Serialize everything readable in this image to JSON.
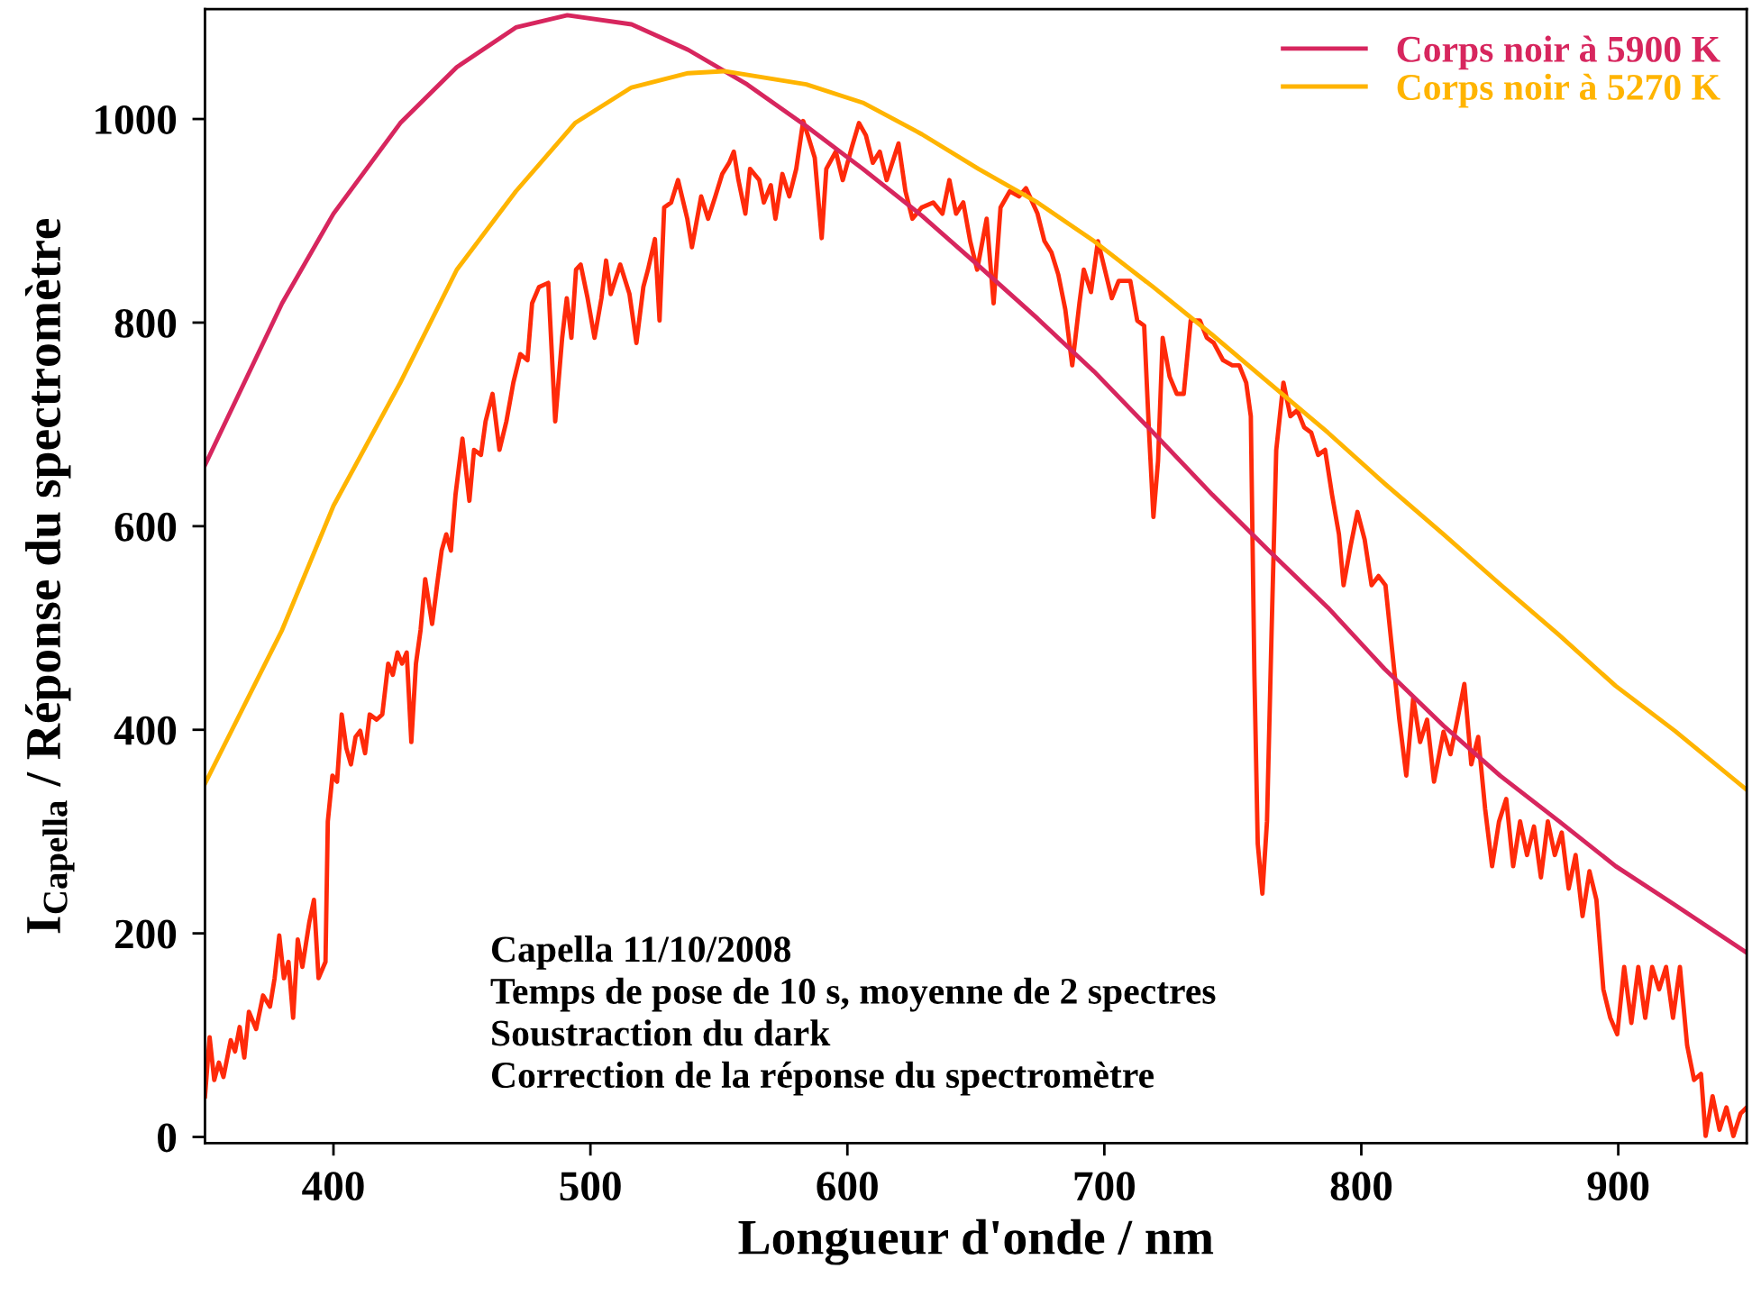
{
  "chart_data": {
    "type": "line",
    "xlabel": "Longueur d'onde / nm",
    "ylabel": "I$_{Capella}$ / Réponse du spectromètre",
    "xlim": [
      350,
      950
    ],
    "xticks": [
      400,
      500,
      600,
      700,
      800,
      900
    ],
    "ylim": [
      -6,
      1108
    ],
    "yticks": [
      0,
      200,
      400,
      600,
      800,
      1000
    ],
    "grid": false,
    "legend": "top right",
    "marker": "none",
    "line_style": "solid",
    "annotations": [
      "Capella 11/10/2008",
      "Temps de pose de 10 s, moyenne de 2 spectres",
      "Soustraction du dark",
      "Correction de la réponse du spectromètre"
    ],
    "series": [
      {
        "color": "#ff2a0a",
        "x": [
          350,
          351.8,
          353.6,
          355.4,
          357.2,
          360,
          361.7,
          363.5,
          365.3,
          367.1,
          369.9,
          372.6,
          375.3,
          377.1,
          378.9,
          380.7,
          382.5,
          384.3,
          386.1,
          387.9,
          390.6,
          392.4,
          394.2,
          396.9,
          397.8,
          399.6,
          401.4,
          403.2,
          405,
          406.8,
          408.6,
          410.4,
          412.3,
          414.1,
          416.8,
          419,
          421.3,
          423.1,
          424.9,
          426.7,
          428.5,
          430.3,
          432.1,
          433.9,
          435.7,
          438.4,
          440.3,
          442.1,
          443.9,
          445.7,
          447.5,
          450.2,
          452.9,
          454.7,
          457.4,
          459.2,
          461.9,
          464.6,
          467.3,
          470,
          472.7,
          475.5,
          477.3,
          480,
          483.6,
          486.3,
          489,
          490.8,
          492.6,
          494.4,
          496.2,
          498.9,
          501.6,
          504.3,
          506.1,
          507.9,
          511.6,
          515.2,
          517.9,
          520.6,
          522.4,
          525.1,
          526.9,
          528.7,
          531.4,
          534.1,
          537.7,
          539.5,
          543.1,
          545.8,
          548.6,
          551.3,
          554,
          555.8,
          557.6,
          560.3,
          562.1,
          565.7,
          567.5,
          570.2,
          572,
          574.7,
          577.4,
          580.1,
          582.8,
          584.6,
          587.3,
          590,
          591.8,
          595.5,
          598.2,
          601.8,
          604.5,
          607.2,
          609.9,
          612.6,
          615.3,
          619.9,
          622.6,
          625.3,
          628.9,
          633.4,
          637,
          639.7,
          642.3,
          645.1,
          647.8,
          650.5,
          654.2,
          656.9,
          659.6,
          663.2,
          666.8,
          669.5,
          674,
          676.7,
          679.4,
          682.1,
          684.8,
          687.5,
          690.3,
          692,
          694.8,
          697.5,
          700.2,
          702.9,
          705.6,
          710.1,
          712.8,
          715.5,
          717.3,
          719.1,
          720.9,
          722.7,
          725.4,
          728.2,
          730.9,
          733.6,
          737.2,
          739.9,
          742.6,
          746.2,
          749.8,
          752.5,
          755.2,
          757,
          758.4,
          759.7,
          761.5,
          763.3,
          765.1,
          766.9,
          769.7,
          772.4,
          775.1,
          777.8,
          780.5,
          783.2,
          785.9,
          788.6,
          791.3,
          793.1,
          795.8,
          798.5,
          801.3,
          804,
          806.7,
          809.4,
          812.1,
          814.8,
          817.5,
          820.2,
          822.9,
          825.6,
          828.3,
          832,
          834.7,
          837.4,
          840.1,
          842.8,
          845.5,
          848.2,
          850.9,
          853.6,
          856.4,
          859.1,
          861.8,
          864.5,
          867.2,
          869.9,
          872.6,
          875.3,
          878,
          880.7,
          883.4,
          886.1,
          888.8,
          891.5,
          894.2,
          896.9,
          899.6,
          902.3,
          905.1,
          907.8,
          910.5,
          913.2,
          915.9,
          918.6,
          921.3,
          924,
          926.8,
          929.5,
          932.2,
          934,
          936.7,
          939.4,
          942.1,
          944.8,
          947.6,
          950
        ],
        "values": [
          40,
          98,
          56,
          73,
          59,
          95,
          84,
          108,
          78,
          123,
          106,
          139,
          128,
          156,
          198,
          156,
          172,
          117,
          194,
          167,
          211,
          233,
          156,
          172,
          310,
          355,
          349,
          415,
          382,
          366,
          393,
          399,
          377,
          415,
          410,
          415,
          465,
          454,
          476,
          465,
          476,
          388,
          465,
          498,
          548,
          504,
          542,
          576,
          592,
          576,
          631,
          686,
          625,
          675,
          670,
          703,
          730,
          675,
          703,
          741,
          769,
          763,
          819,
          835,
          839,
          703,
          785,
          824,
          785,
          852,
          857,
          824,
          785,
          824,
          861,
          828,
          857,
          828,
          780,
          835,
          852,
          882,
          802,
          913,
          918,
          940,
          902,
          874,
          924,
          902,
          924,
          946,
          957,
          968,
          940,
          907,
          951,
          940,
          918,
          935,
          902,
          946,
          924,
          951,
          998,
          984,
          962,
          883,
          951,
          968,
          940,
          973,
          996,
          984,
          957,
          968,
          940,
          976,
          929,
          902,
          913,
          918,
          907,
          940,
          907,
          918,
          880,
          852,
          902,
          819,
          913,
          929,
          924,
          932,
          907,
          880,
          869,
          847,
          813,
          758,
          819,
          852,
          830,
          880,
          852,
          824,
          841,
          841,
          802,
          797,
          697,
          609,
          664,
          785,
          747,
          730,
          730,
          802,
          802,
          785,
          780,
          763,
          758,
          758,
          741,
          708,
          454,
          288,
          239,
          310,
          498,
          675,
          741,
          708,
          714,
          697,
          692,
          670,
          675,
          631,
          592,
          542,
          580,
          614,
          587,
          542,
          551,
          542,
          476,
          410,
          355,
          431,
          388,
          410,
          349,
          398,
          376,
          410,
          445,
          366,
          393,
          322,
          266,
          310,
          332,
          266,
          310,
          277,
          305,
          255,
          310,
          277,
          299,
          244,
          277,
          217,
          261,
          233,
          145,
          117,
          101,
          167,
          112,
          167,
          117,
          167,
          145,
          167,
          117,
          167,
          90,
          56,
          62,
          1,
          40,
          7,
          29,
          1,
          23,
          29
        ]
      },
      {
        "name": "Corps noir à 5900 K",
        "color": "#d7265e",
        "x": [
          350,
          380,
          400,
          426,
          448,
          471,
          491,
          516,
          538,
          561,
          584,
          606,
          629,
          651,
          674,
          696,
          719,
          742,
          764,
          787,
          809,
          832,
          854,
          877,
          899,
          922,
          950
        ],
        "values": [
          660,
          819,
          907,
          996,
          1051,
          1090,
          1102,
          1093,
          1068,
          1034,
          993,
          951,
          905,
          856,
          804,
          752,
          692,
          631,
          576,
          520,
          460,
          404,
          355,
          310,
          266,
          228,
          181
        ]
      },
      {
        "name": "Corps noir à 5270 K",
        "color": "#ffb400",
        "x": [
          350,
          380,
          400,
          426,
          448,
          471,
          494,
          516,
          538,
          552,
          584,
          606,
          629,
          651,
          674,
          696,
          719,
          742,
          764,
          787,
          809,
          832,
          854,
          877,
          899,
          922,
          950
        ],
        "values": [
          347,
          498,
          620,
          741,
          852,
          929,
          996,
          1031,
          1045,
          1047,
          1034,
          1016,
          985,
          951,
          918,
          880,
          835,
          788,
          741,
          692,
          642,
          592,
          543,
          493,
          443,
          399,
          341
        ]
      }
    ]
  }
}
